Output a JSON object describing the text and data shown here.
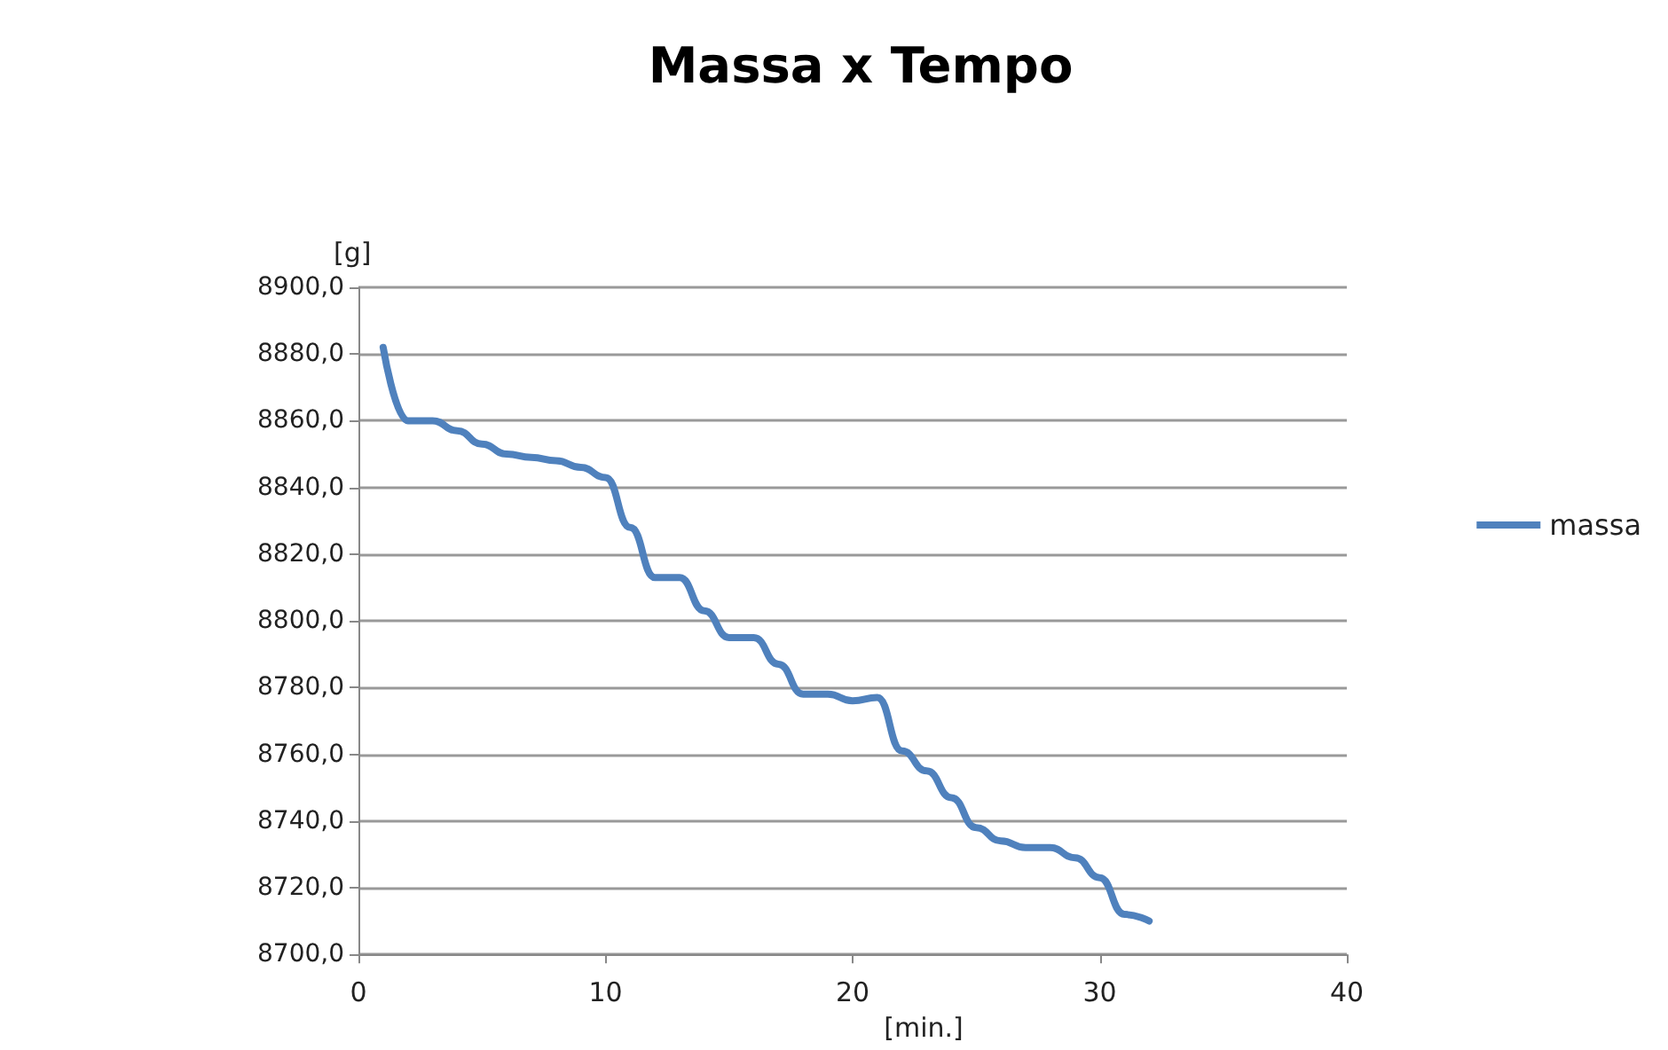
{
  "chart_data": {
    "type": "line",
    "title": "Massa x Tempo",
    "xlabel": "[min.]",
    "ylabel": "[g]",
    "x": [
      1,
      2,
      3,
      4,
      5,
      6,
      7,
      8,
      9,
      10,
      11,
      12,
      13,
      14,
      15,
      16,
      17,
      18,
      19,
      20,
      21,
      22,
      23,
      24,
      25,
      26,
      27,
      28,
      29,
      30,
      31,
      32
    ],
    "series": [
      {
        "name": "massa",
        "color": "#4f81bd",
        "values": [
          8882,
          8860,
          8860,
          8857,
          8853,
          8850,
          8849,
          8848,
          8846,
          8843,
          8828,
          8813,
          8813,
          8803,
          8795,
          8795,
          8787,
          8778,
          8778,
          8776,
          8777,
          8761,
          8755,
          8747,
          8738,
          8734,
          8732,
          8732,
          8729,
          8723,
          8712,
          8710
        ]
      }
    ],
    "xlim": [
      0,
      40
    ],
    "xticks": [
      0,
      10,
      20,
      30,
      40
    ],
    "ylim": [
      8700,
      8900
    ],
    "yticks": [
      {
        "value": 8700,
        "label": "8700,0"
      },
      {
        "value": 8720,
        "label": "8720,0"
      },
      {
        "value": 8740,
        "label": "8740,0"
      },
      {
        "value": 8760,
        "label": "8760,0"
      },
      {
        "value": 8780,
        "label": "8780,0"
      },
      {
        "value": 8800,
        "label": "8800,0"
      },
      {
        "value": 8820,
        "label": "8820,0"
      },
      {
        "value": 8840,
        "label": "8840,0"
      },
      {
        "value": 8860,
        "label": "8860,0"
      },
      {
        "value": 8880,
        "label": "8880,0"
      },
      {
        "value": 8900,
        "label": "8900,0"
      }
    ],
    "grid": "y",
    "legend": "right",
    "marker": "none",
    "line_style": "solid"
  }
}
